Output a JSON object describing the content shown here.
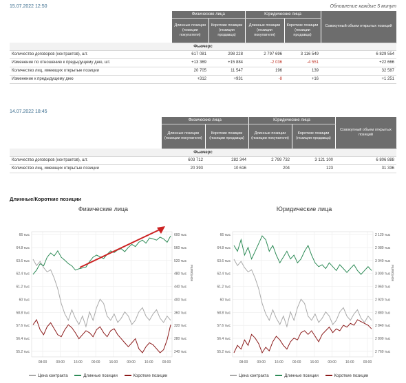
{
  "header1": {
    "timestamp": "15.07.2022 12:50",
    "update_note": "Обновление каждые 5 минут"
  },
  "header2": {
    "timestamp": "14.07.2022 18:45"
  },
  "columns": {
    "phys": "Физические лица",
    "jur": "Юридические лица",
    "long": "Длинные позиции (позиции покупателя)",
    "short": "Короткие позиции (позиции продавца)",
    "total": "Совокупный объем открытых позиций"
  },
  "section": "Фьючерс",
  "table1": {
    "rows": [
      {
        "label": "Количество договоров (контрактов), шт.",
        "v": [
          "617 081",
          "298 228",
          "2 797 696",
          "3 116 549",
          "6 829 554"
        ],
        "neg": [
          false,
          false,
          false,
          false,
          false
        ]
      },
      {
        "label": "Изменение по отношению к предыдущему дню, шт.",
        "v": [
          "+13 369",
          "+15 884",
          "-2 036",
          "-4 551",
          "+22 666"
        ],
        "neg": [
          false,
          false,
          true,
          true,
          false
        ]
      },
      {
        "label": "Количество лиц, имеющих открытые позиции",
        "v": [
          "20 705",
          "11 547",
          "196",
          "139",
          "32 587"
        ],
        "neg": [
          false,
          false,
          false,
          false,
          false
        ]
      },
      {
        "label": "Изменение к предыдущему дню",
        "v": [
          "+312",
          "+931",
          "-8",
          "+16",
          "+1 251"
        ],
        "neg": [
          false,
          false,
          true,
          false,
          false
        ]
      }
    ]
  },
  "table2": {
    "rows": [
      {
        "label": "Количество договоров (контрактов), шт.",
        "v": [
          "603 712",
          "282 344",
          "2 799 732",
          "3 121 100",
          "6 806 888"
        ],
        "neg": [
          false,
          false,
          false,
          false,
          false
        ]
      },
      {
        "label": "Количество лиц, имеющих открытые позиции",
        "v": [
          "20 393",
          "10 616",
          "204",
          "123",
          "31 336"
        ],
        "neg": [
          false,
          false,
          false,
          false,
          false
        ]
      }
    ]
  },
  "charts_section_title": "Длинные/Короткие позиции",
  "legend": {
    "price": "Цена контракта",
    "long": "Длинные позиции",
    "short": "Короткие позиции"
  },
  "colors": {
    "price": "#a9a9a9",
    "long": "#2e8b57",
    "short": "#8b1a1a",
    "arrow": "#cc2222",
    "header_bg": "#6d6d6d"
  },
  "chart_data": [
    {
      "type": "line",
      "title": "Физические лица",
      "y_left_ticks": [
        "66 тыс",
        "64.8 тыс",
        "63.6 тыс",
        "62.4 тыс",
        "61.2 тыс",
        "60 тыс",
        "58.8 тыс",
        "57.6 тыс",
        "56.4 тыс",
        "55.2 тыс"
      ],
      "y_right_ticks": [
        "600 тыс",
        "560 тыс",
        "520 тыс",
        "480 тыс",
        "440 тыс",
        "400 тыс",
        "360 тыс",
        "320 тыс",
        "280 тыс",
        "240 тыс"
      ],
      "x_ticks": [
        "08:00",
        "00:00",
        "16:00",
        "00:00",
        "16:00",
        "00:00",
        "16:00",
        "00:00"
      ],
      "y_right_label": "контракты",
      "has_arrow": true,
      "series": [
        {
          "name": "Цена контракта",
          "color_key": "price",
          "values": [
            62.9,
            62.6,
            62.8,
            62.5,
            62.3,
            62.4,
            62.0,
            61.5,
            60.8,
            60.3,
            60.0,
            60.5,
            60.1,
            59.8,
            60.2,
            59.7,
            60.4,
            60.0,
            60.6,
            61.0,
            60.8,
            60.2,
            60.0,
            60.3,
            59.9,
            60.1,
            60.4,
            60.2,
            59.8,
            60.0,
            60.4,
            60.6,
            60.2,
            60.0,
            60.3,
            60.5,
            60.1,
            59.9,
            60.2,
            60.0
          ]
        },
        {
          "name": "Длинные позиции",
          "color_key": "long",
          "values": [
            515,
            525,
            540,
            535,
            555,
            565,
            558,
            570,
            555,
            548,
            540,
            535,
            525,
            528,
            530,
            532,
            545,
            555,
            560,
            556,
            552,
            562,
            570,
            566,
            572,
            575,
            568,
            578,
            585,
            580,
            590,
            595,
            588,
            600,
            598,
            595,
            602,
            598,
            590,
            605
          ]
        },
        {
          "name": "Короткие позиции",
          "color_key": "short",
          "values": [
            290,
            295,
            285,
            280,
            288,
            292,
            286,
            280,
            278,
            285,
            290,
            287,
            282,
            276,
            280,
            284,
            282,
            278,
            285,
            288,
            282,
            278,
            284,
            286,
            280,
            276,
            272,
            268,
            272,
            276,
            266,
            262,
            268,
            272,
            270,
            266,
            262,
            265,
            275,
            290
          ]
        }
      ]
    },
    {
      "type": "line",
      "title": "Юридические лица",
      "y_left_ticks": [
        "66 тыс",
        "64.8 тыс",
        "63.6 тыс",
        "62.4 тыс",
        "61.2 тыс",
        "60 тыс",
        "58.8 тыс",
        "57.6 тыс",
        "56.4 тыс",
        "55.2 тыс"
      ],
      "y_right_ticks": [
        "2 120 тыс",
        "2 080 тыс",
        "3 040 тыс",
        "3 000 тыс",
        "2 960 тыс",
        "2 920 тыс",
        "2 880 тыс",
        "2 840 тыс",
        "2 800 тыс",
        "2 760 тыс"
      ],
      "x_ticks": [
        "08:00",
        "00:00",
        "16:00",
        "00:00",
        "16:00",
        "00:00",
        "16:00",
        "00:00"
      ],
      "y_right_label": "контракты",
      "has_arrow": false,
      "series": [
        {
          "name": "Цена контракта",
          "color_key": "price",
          "values": [
            62.9,
            62.6,
            62.8,
            62.5,
            62.3,
            62.4,
            62.0,
            61.5,
            60.8,
            60.3,
            60.0,
            60.5,
            60.1,
            59.8,
            60.2,
            59.7,
            60.4,
            60.0,
            60.6,
            61.0,
            60.8,
            60.2,
            60.0,
            60.3,
            59.9,
            60.1,
            60.4,
            60.2,
            59.8,
            60.0,
            60.4,
            60.6,
            60.2,
            60.0,
            60.3,
            60.5,
            60.1,
            59.9,
            60.2,
            60.0
          ]
        },
        {
          "name": "Длинные позиции",
          "color_key": "long",
          "values": [
            2815,
            2812,
            2818,
            2810,
            2814,
            2808,
            2812,
            2816,
            2820,
            2818,
            2812,
            2815,
            2810,
            2806,
            2809,
            2812,
            2808,
            2810,
            2806,
            2808,
            2812,
            2815,
            2810,
            2806,
            2804,
            2805,
            2803,
            2806,
            2804,
            2802,
            2805,
            2803,
            2801,
            2803,
            2805,
            2802,
            2800,
            2802,
            2804,
            2802
          ]
        },
        {
          "name": "Короткие позиции",
          "color_key": "short",
          "values": [
            3040,
            3060,
            3050,
            3075,
            3060,
            3090,
            3080,
            3065,
            3040,
            3055,
            3045,
            3070,
            3085,
            3075,
            3060,
            3050,
            3070,
            3080,
            3075,
            3095,
            3100,
            3090,
            3100,
            3085,
            3070,
            3090,
            3100,
            3110,
            3095,
            3105,
            3100,
            3115,
            3110,
            3120,
            3115,
            3130,
            3125,
            3120,
            3115,
            3105
          ]
        }
      ]
    }
  ]
}
